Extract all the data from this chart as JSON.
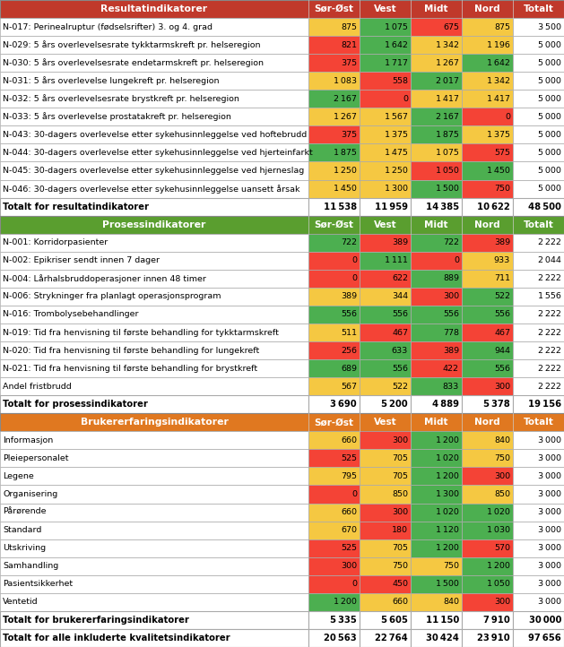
{
  "section1_header": "Resultatindikatorer",
  "section2_header": "Prosessindikatorer",
  "section3_header": "Brukererfaringsindikatorer",
  "col_headers": [
    "Sør-Øst",
    "Vest",
    "Midt",
    "Nord",
    "Totalt"
  ],
  "header1_bg": "#c0392b",
  "header2_bg": "#5a9e2f",
  "header3_bg": "#e07820",
  "header_fg": "#ffffff",
  "section1_rows": [
    {
      "label": "N-017: Perinealruptur (fødselsrifter) 3. og 4. grad",
      "values": [
        875,
        1075,
        675,
        875,
        3500
      ],
      "colors": [
        "#f5c842",
        "#4caf50",
        "#f44336",
        "#f5c842",
        ""
      ]
    },
    {
      "label": "N-029: 5 års overlevelsesrate tykktarmskreft pr. helseregion",
      "values": [
        821,
        1642,
        1342,
        1196,
        5000
      ],
      "colors": [
        "#f44336",
        "#4caf50",
        "#f5c842",
        "#f5c842",
        ""
      ]
    },
    {
      "label": "N-030: 5 års overlevelsesrate endetarmskreft pr. helseregion",
      "values": [
        375,
        1717,
        1267,
        1642,
        5000
      ],
      "colors": [
        "#f44336",
        "#4caf50",
        "#f5c842",
        "#4caf50",
        ""
      ]
    },
    {
      "label": "N-031: 5 års overlevelse lungekreft pr. helseregion",
      "values": [
        1083,
        558,
        2017,
        1342,
        5000
      ],
      "colors": [
        "#f5c842",
        "#f44336",
        "#4caf50",
        "#f5c842",
        ""
      ]
    },
    {
      "label": "N-032: 5 års overlevelsesrate brystkreft pr. helseregion",
      "values": [
        2167,
        0,
        1417,
        1417,
        5000
      ],
      "colors": [
        "#4caf50",
        "#f44336",
        "#f5c842",
        "#f5c842",
        ""
      ]
    },
    {
      "label": "N-033: 5 års overlevelse prostatakreft pr. helseregion",
      "values": [
        1267,
        1567,
        2167,
        0,
        5000
      ],
      "colors": [
        "#f5c842",
        "#f5c842",
        "#4caf50",
        "#f44336",
        ""
      ]
    },
    {
      "label": "N-043: 30-dagers overlevelse etter sykehusinnleggelse ved hoftebrudd",
      "values": [
        375,
        1375,
        1875,
        1375,
        5000
      ],
      "colors": [
        "#f44336",
        "#f5c842",
        "#4caf50",
        "#f5c842",
        ""
      ]
    },
    {
      "label": "N-044: 30-dagers overlevelse etter sykehusinnleggelse ved hjerteinfarkt",
      "values": [
        1875,
        1475,
        1075,
        575,
        5000
      ],
      "colors": [
        "#4caf50",
        "#f5c842",
        "#f5c842",
        "#f44336",
        ""
      ]
    },
    {
      "label": "N-045: 30-dagers overlevelse etter sykehusinnleggelse ved hjerneslag",
      "values": [
        1250,
        1250,
        1050,
        1450,
        5000
      ],
      "colors": [
        "#f5c842",
        "#f5c842",
        "#f44336",
        "#4caf50",
        ""
      ]
    },
    {
      "label": "N-046: 30-dagers overlevelse etter sykehusinnleggelse uansett årsak",
      "values": [
        1450,
        1300,
        1500,
        750,
        5000
      ],
      "colors": [
        "#f5c842",
        "#f5c842",
        "#4caf50",
        "#f44336",
        ""
      ]
    }
  ],
  "section1_total": {
    "label": "Totalt for resultatindikatorer",
    "values": [
      11538,
      11959,
      14385,
      10622,
      48500
    ]
  },
  "section2_rows": [
    {
      "label": "N-001: Korridorpasienter",
      "values": [
        722,
        389,
        722,
        389,
        2222
      ],
      "colors": [
        "#4caf50",
        "#f44336",
        "#4caf50",
        "#f44336",
        ""
      ]
    },
    {
      "label": "N-002: Epikriser sendt innen 7 dager",
      "values": [
        0,
        1111,
        0,
        933,
        2044
      ],
      "colors": [
        "#f44336",
        "#4caf50",
        "#f44336",
        "#f5c842",
        ""
      ]
    },
    {
      "label": "N-004: Lårhalsbruddoperasjoner innen 48 timer",
      "values": [
        0,
        622,
        889,
        711,
        2222
      ],
      "colors": [
        "#f44336",
        "#f44336",
        "#4caf50",
        "#f5c842",
        ""
      ]
    },
    {
      "label": "N-006: Strykninger fra planlagt operasjonsprogram",
      "values": [
        389,
        344,
        300,
        522,
        1556
      ],
      "colors": [
        "#f5c842",
        "#f5c842",
        "#f44336",
        "#4caf50",
        ""
      ]
    },
    {
      "label": "N-016: Trombolysebehandlinger",
      "values": [
        556,
        556,
        556,
        556,
        2222
      ],
      "colors": [
        "#4caf50",
        "#4caf50",
        "#4caf50",
        "#4caf50",
        ""
      ]
    },
    {
      "label": "N-019: Tid fra henvisning til første behandling for tykktarmskreft",
      "values": [
        511,
        467,
        778,
        467,
        2222
      ],
      "colors": [
        "#f5c842",
        "#f44336",
        "#4caf50",
        "#f44336",
        ""
      ]
    },
    {
      "label": "N-020: Tid fra henvisning til første behandling for lungekreft",
      "values": [
        256,
        633,
        389,
        944,
        2222
      ],
      "colors": [
        "#f44336",
        "#4caf50",
        "#f44336",
        "#4caf50",
        ""
      ]
    },
    {
      "label": "N-021: Tid fra henvisning til første behandling for brystkreft",
      "values": [
        689,
        556,
        422,
        556,
        2222
      ],
      "colors": [
        "#4caf50",
        "#4caf50",
        "#f44336",
        "#4caf50",
        ""
      ]
    },
    {
      "label": "Andel fristbrudd",
      "values": [
        567,
        522,
        833,
        300,
        2222
      ],
      "colors": [
        "#f5c842",
        "#f5c842",
        "#4caf50",
        "#f44336",
        ""
      ]
    }
  ],
  "section2_total": {
    "label": "Totalt for prosessindikatorer",
    "values": [
      3690,
      5200,
      4889,
      5378,
      19156
    ]
  },
  "section3_rows": [
    {
      "label": "Informasjon",
      "values": [
        660,
        300,
        1200,
        840,
        3000
      ],
      "colors": [
        "#f5c842",
        "#f44336",
        "#4caf50",
        "#f5c842",
        ""
      ]
    },
    {
      "label": "Pleiepersonalet",
      "values": [
        525,
        705,
        1020,
        750,
        3000
      ],
      "colors": [
        "#f44336",
        "#f5c842",
        "#4caf50",
        "#f5c842",
        ""
      ]
    },
    {
      "label": "Legene",
      "values": [
        795,
        705,
        1200,
        300,
        3000
      ],
      "colors": [
        "#f5c842",
        "#f5c842",
        "#4caf50",
        "#f44336",
        ""
      ]
    },
    {
      "label": "Organisering",
      "values": [
        0,
        850,
        1300,
        850,
        3000
      ],
      "colors": [
        "#f44336",
        "#f5c842",
        "#4caf50",
        "#f5c842",
        ""
      ]
    },
    {
      "label": "Pårørende",
      "values": [
        660,
        300,
        1020,
        1020,
        3000
      ],
      "colors": [
        "#f5c842",
        "#f44336",
        "#4caf50",
        "#4caf50",
        ""
      ]
    },
    {
      "label": "Standard",
      "values": [
        670,
        180,
        1120,
        1030,
        3000
      ],
      "colors": [
        "#f5c842",
        "#f44336",
        "#4caf50",
        "#4caf50",
        ""
      ]
    },
    {
      "label": "Utskriving",
      "values": [
        525,
        705,
        1200,
        570,
        3000
      ],
      "colors": [
        "#f44336",
        "#f5c842",
        "#4caf50",
        "#f44336",
        ""
      ]
    },
    {
      "label": "Samhandling",
      "values": [
        300,
        750,
        750,
        1200,
        3000
      ],
      "colors": [
        "#f44336",
        "#f5c842",
        "#f5c842",
        "#4caf50",
        ""
      ]
    },
    {
      "label": "Pasientsikkerhet",
      "values": [
        0,
        450,
        1500,
        1050,
        3000
      ],
      "colors": [
        "#f44336",
        "#f44336",
        "#4caf50",
        "#4caf50",
        ""
      ]
    },
    {
      "label": "Ventetid",
      "values": [
        1200,
        660,
        840,
        300,
        3000
      ],
      "colors": [
        "#4caf50",
        "#f5c842",
        "#f5c842",
        "#f44336",
        ""
      ]
    }
  ],
  "section3_total": {
    "label": "Totalt for brukererfaringsindikatorer",
    "values": [
      5335,
      5605,
      11150,
      7910,
      30000
    ]
  },
  "grand_total": {
    "label": "Totalt for alle inkluderte kvalitetsindikatorer",
    "values": [
      20563,
      22764,
      30424,
      23910,
      97656
    ]
  }
}
